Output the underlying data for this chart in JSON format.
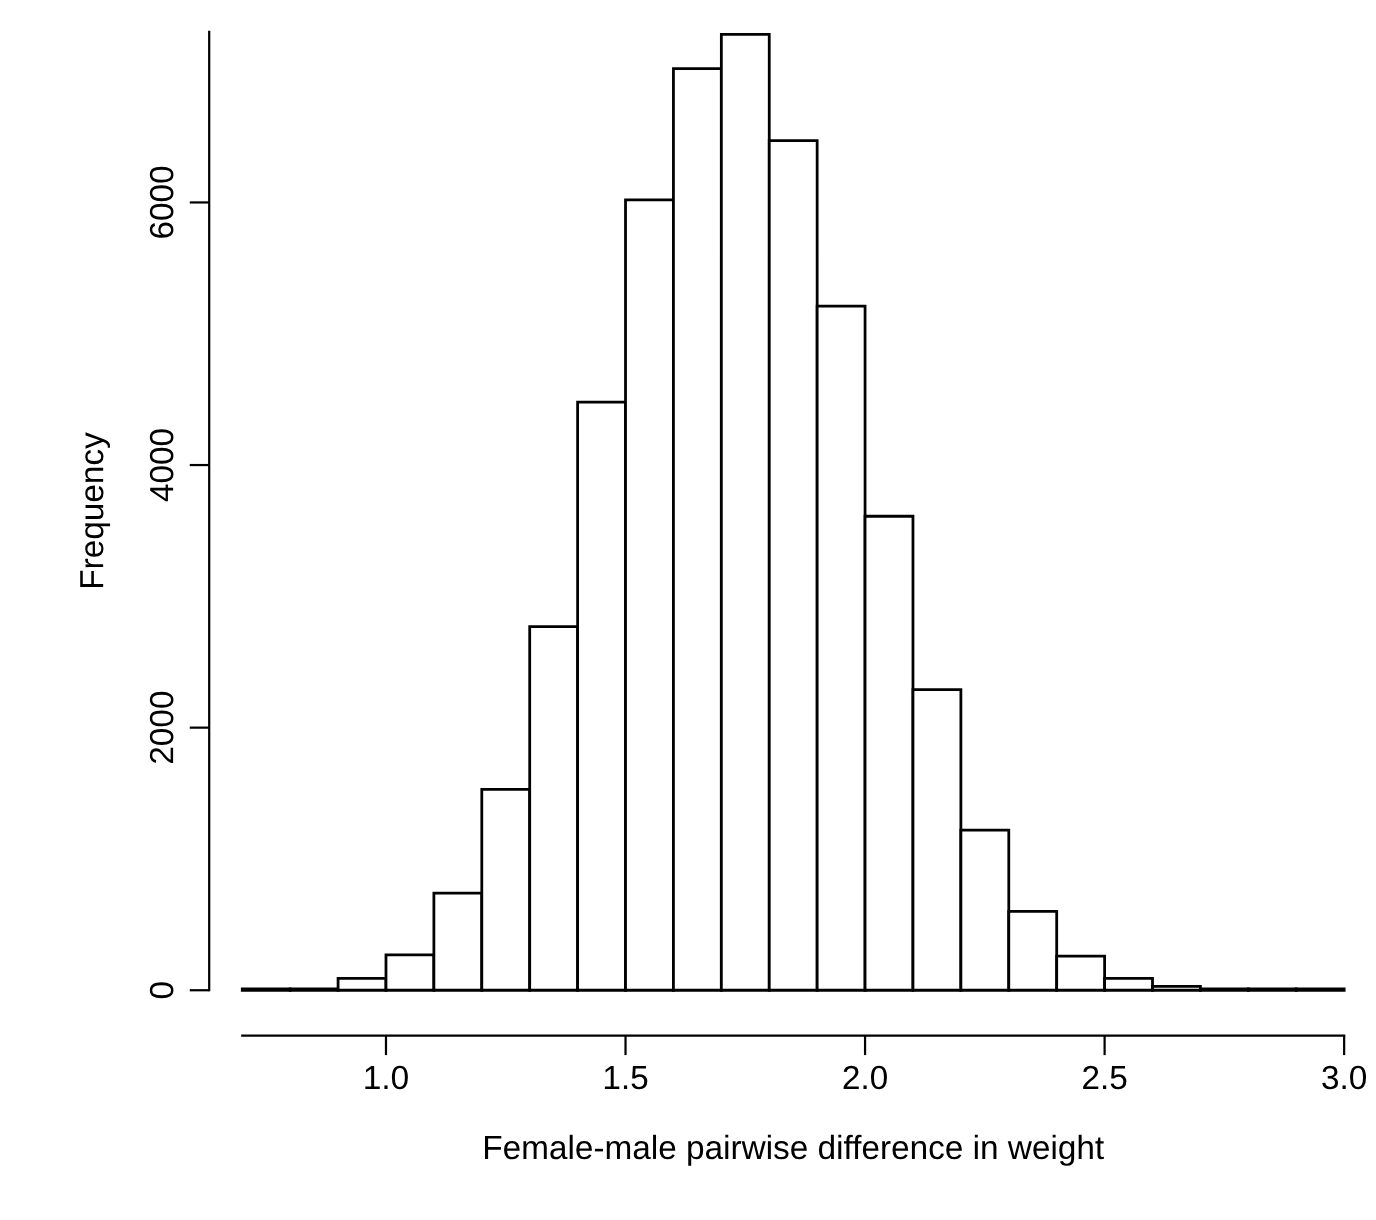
{
  "chart_data": {
    "type": "histogram",
    "xlabel": "Female-male pairwise difference in weight",
    "ylabel": "Frequency",
    "bins": [
      0.7,
      0.8,
      0.9,
      1.0,
      1.1,
      1.2,
      1.3,
      1.4,
      1.5,
      1.6,
      1.7,
      1.8,
      1.9,
      2.0,
      2.1,
      2.2,
      2.3,
      2.4,
      2.5,
      2.6,
      2.7,
      2.8,
      2.9,
      3.0
    ],
    "values": [
      10,
      10,
      90,
      270,
      740,
      1530,
      2770,
      4480,
      6020,
      7020,
      7280,
      6470,
      5210,
      3610,
      2290,
      1220,
      600,
      260,
      90,
      30,
      10,
      10,
      10
    ],
    "color": "#ffffff",
    "xticks": [
      {
        "value": 1.0,
        "label": "1.0"
      },
      {
        "value": 1.5,
        "label": "1.5"
      },
      {
        "value": 2.0,
        "label": "2.0"
      },
      {
        "value": 2.5,
        "label": "2.5"
      },
      {
        "value": 3.0,
        "label": "3.0"
      }
    ],
    "yticks": [
      0,
      2000,
      4000,
      6000
    ],
    "xlim": [
      0.7,
      3.0
    ],
    "ylim": [
      0,
      7300
    ],
    "grid": false
  }
}
